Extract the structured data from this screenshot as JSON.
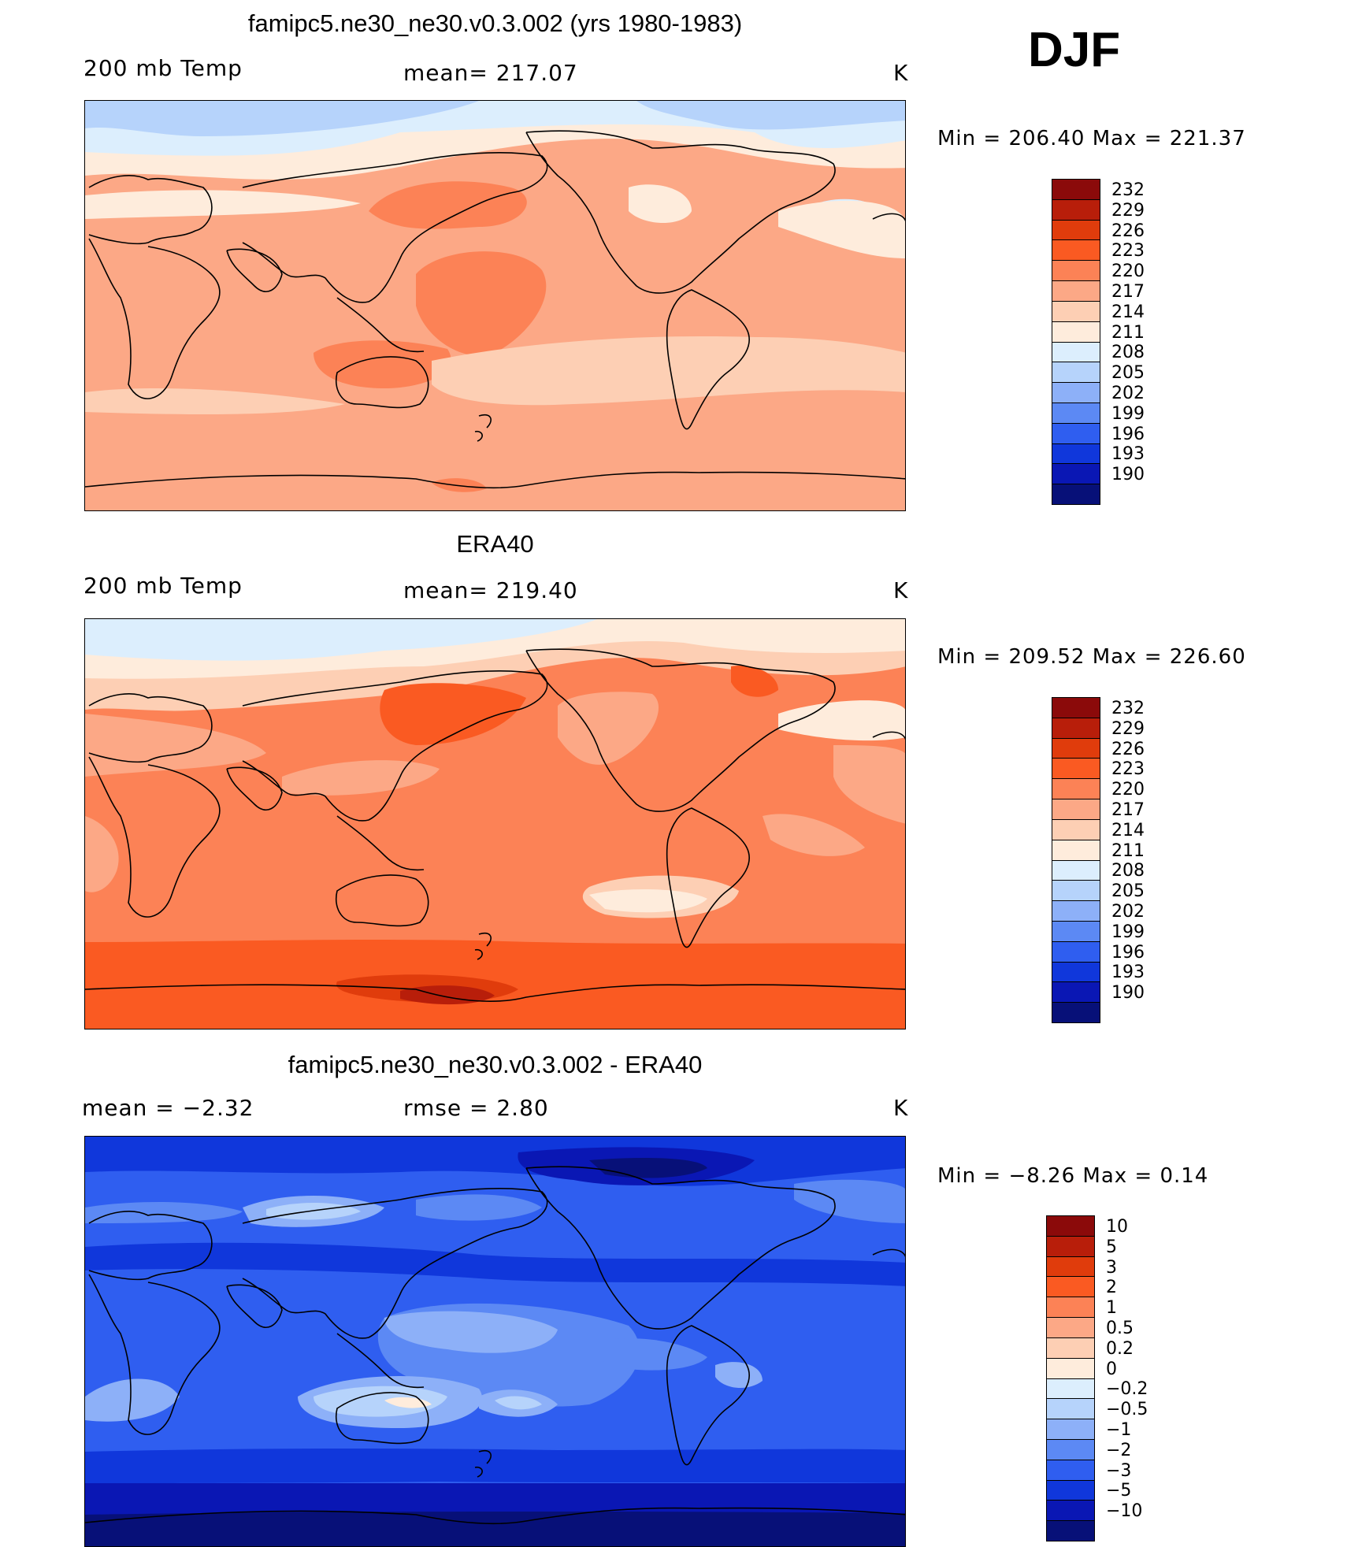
{
  "season": "DJF",
  "panels": [
    {
      "title": "famipc5.ne30_ne30.v0.3.002 (yrs 1980-1983)",
      "left_label": "200 mb Temp",
      "center_label": "mean= 217.07",
      "units": "K",
      "minmax": "Min  =  206.40  Max  =  221.37"
    },
    {
      "title": "ERA40",
      "left_label": "200 mb Temp",
      "center_label": "mean= 219.40",
      "units": "K",
      "minmax": "Min  =  209.52  Max  =  226.60"
    },
    {
      "title": "famipc5.ne30_ne30.v0.3.002 - ERA40",
      "left_label": "mean =    −2.32",
      "center_label": "rmse =     2.80",
      "units": "K",
      "minmax": "Min  =   −8.26  Max  =     0.14"
    }
  ],
  "colorbars": {
    "temp_levels": [
      "232",
      "229",
      "226",
      "223",
      "220",
      "217",
      "214",
      "211",
      "208",
      "205",
      "202",
      "199",
      "196",
      "193",
      "190"
    ],
    "diff_levels": [
      "10",
      "5",
      "3",
      "2",
      "1",
      "0.5",
      "0.2",
      "0",
      "−0.2",
      "−0.5",
      "−1",
      "−2",
      "−3",
      "−5",
      "−10"
    ],
    "colors": [
      "#8b0a0a",
      "#b81e0a",
      "#e03c0c",
      "#fa5a22",
      "#fc8256",
      "#fca886",
      "#fdcfb4",
      "#feecdc",
      "#dceefd",
      "#b6d3fb",
      "#8db0f8",
      "#5c89f4",
      "#2f5ef0",
      "#1037db",
      "#0a17b4",
      "#071078"
    ]
  },
  "chart_data": [
    {
      "type": "heatmap",
      "title": "famipc5.ne30_ne30.v0.3.002 (yrs 1980-1983)",
      "variable": "200 mb Temp",
      "units": "K",
      "mean": 217.07,
      "min": 206.4,
      "max": 221.37,
      "contour_levels": [
        190,
        193,
        196,
        199,
        202,
        205,
        208,
        211,
        214,
        217,
        220,
        223,
        226,
        229,
        232
      ]
    },
    {
      "type": "heatmap",
      "title": "ERA40",
      "variable": "200 mb Temp",
      "units": "K",
      "mean": 219.4,
      "min": 209.52,
      "max": 226.6,
      "contour_levels": [
        190,
        193,
        196,
        199,
        202,
        205,
        208,
        211,
        214,
        217,
        220,
        223,
        226,
        229,
        232
      ]
    },
    {
      "type": "heatmap",
      "title": "famipc5.ne30_ne30.v0.3.002 - ERA40",
      "units": "K",
      "mean": -2.32,
      "rmse": 2.8,
      "min": -8.26,
      "max": 0.14,
      "contour_levels": [
        -10,
        -5,
        -3,
        -2,
        -1,
        -0.5,
        -0.2,
        0,
        0.2,
        0.5,
        1,
        2,
        3,
        5,
        10
      ]
    }
  ]
}
